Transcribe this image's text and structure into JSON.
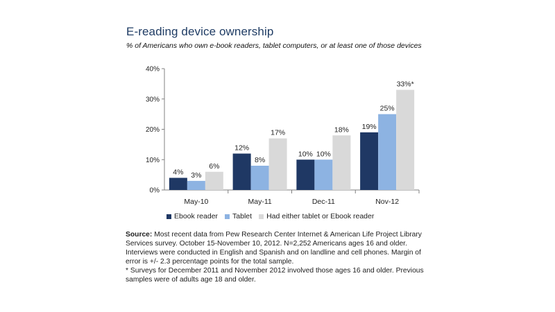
{
  "chart_data": {
    "type": "bar",
    "title": "E-reading device ownership",
    "subtitle": "% of Americans who own e-book readers, tablet computers, or  at least one of those devices",
    "categories": [
      "May-10",
      "May-11",
      "Dec-11",
      "Nov-12"
    ],
    "series": [
      {
        "name": "Ebook reader",
        "color": "#1f3864",
        "values": [
          4,
          12,
          10,
          19
        ],
        "labels": [
          "4%",
          "12%",
          "10%",
          "19%"
        ]
      },
      {
        "name": "Tablet",
        "color": "#8db3e2",
        "values": [
          3,
          8,
          10,
          25
        ],
        "labels": [
          "3%",
          "8%",
          "10%",
          "25%"
        ]
      },
      {
        "name": "Had either tablet or Ebook reader",
        "color": "#d9d9d9",
        "values": [
          6,
          17,
          18,
          33
        ],
        "labels": [
          "6%",
          "17%",
          "18%",
          "33%*"
        ]
      }
    ],
    "ylim": [
      0,
      40
    ],
    "yticks": [
      0,
      10,
      20,
      30,
      40
    ],
    "ytick_labels": [
      "0%",
      "10%",
      "20%",
      "30%",
      "40%"
    ],
    "xlabel": "",
    "ylabel": "",
    "grid": false,
    "legend_position": "bottom"
  },
  "footnote": {
    "source_label": "Source:",
    "source_text": " Most recent data from Pew Research Center Internet & American Life Project Library Services survey. October 15-November 10, 2012. N=2,252 Americans ages 16 and older. Interviews were conducted in English and Spanish and on landline and cell phones. Margin of error is +/- 2.3 percentage points for the total sample.",
    "note": "* Surveys for December 2011 and November 2012 involved those ages 16 and older. Previous samples were of adults age 18 and older."
  }
}
